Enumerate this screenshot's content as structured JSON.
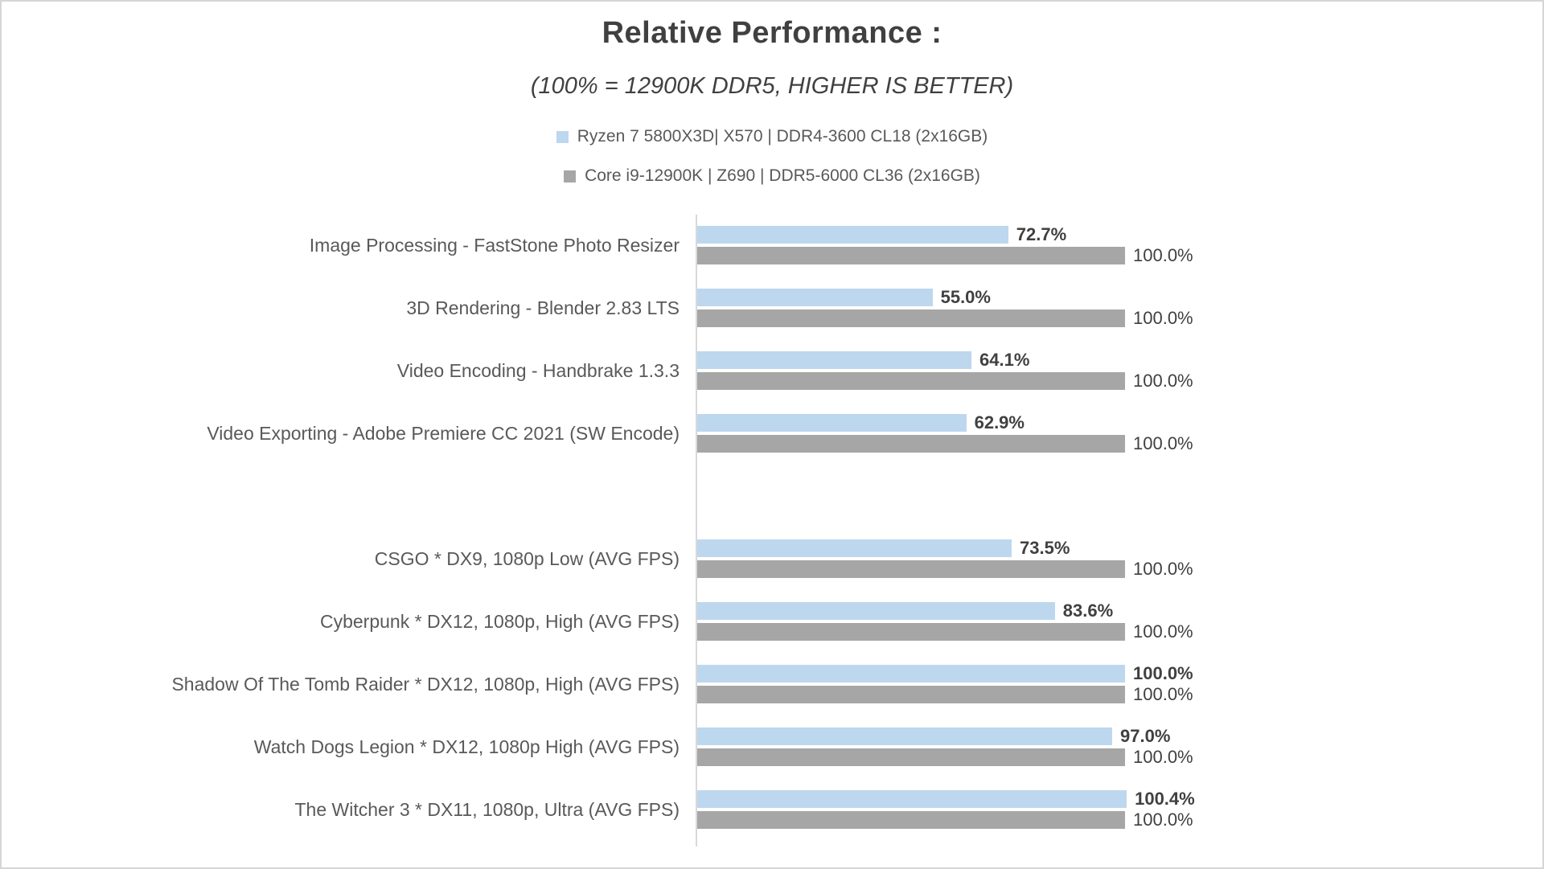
{
  "page": {
    "background": "#ffffff",
    "border_color": "#d6d6d6",
    "axis_color": "#d9d9d9"
  },
  "header": {
    "title": "Relative Performance :",
    "subtitle": "(100% = 12900K DDR5, HIGHER IS BETTER)"
  },
  "legend": {
    "items": [
      {
        "label": "Ryzen 7 5800X3D| X570 | DDR4-3600 CL18 (2x16GB)",
        "color": "#bdd7ee"
      },
      {
        "label": "Core i9-12900K | Z690 | DDR5-6000 CL36 (2x16GB)",
        "color": "#a6a6a6"
      }
    ]
  },
  "chart_data": {
    "type": "bar",
    "orientation": "horizontal",
    "title": "Relative Performance :",
    "subtitle": "(100% = 12900K DDR5, HIGHER IS BETTER)",
    "xlabel": "",
    "ylabel": "",
    "value_unit": "%",
    "value_decimals": 1,
    "xlim": [
      0,
      110
    ],
    "grid": false,
    "data_labels": true,
    "legend_position": "top-center",
    "categories": [
      "Image Processing - FastStone Photo Resizer",
      "3D Rendering - Blender 2.83 LTS",
      "Video Encoding - Handbrake 1.3.3",
      "Video Exporting - Adobe Premiere CC 2021 (SW Encode)",
      "",
      "CSGO * DX9, 1080p Low (AVG FPS)",
      "Cyberpunk * DX12, 1080p, High (AVG FPS)",
      "Shadow Of The Tomb Raider * DX12, 1080p, High (AVG FPS)",
      "Watch Dogs Legion * DX12, 1080p High (AVG FPS)",
      "The Witcher 3 * DX11, 1080p, Ultra (AVG FPS)"
    ],
    "series": [
      {
        "name": "Ryzen 7 5800X3D| X570 | DDR4-3600 CL18 (2x16GB)",
        "color": "#bdd7ee",
        "label_bold": true,
        "values": [
          72.7,
          55.0,
          64.1,
          62.9,
          null,
          73.5,
          83.6,
          100.0,
          97.0,
          100.4
        ]
      },
      {
        "name": "Core i9-12900K | Z690 | DDR5-6000 CL36 (2x16GB)",
        "color": "#a6a6a6",
        "label_bold": false,
        "values": [
          100.0,
          100.0,
          100.0,
          100.0,
          null,
          100.0,
          100.0,
          100.0,
          100.0,
          100.0
        ]
      }
    ]
  }
}
